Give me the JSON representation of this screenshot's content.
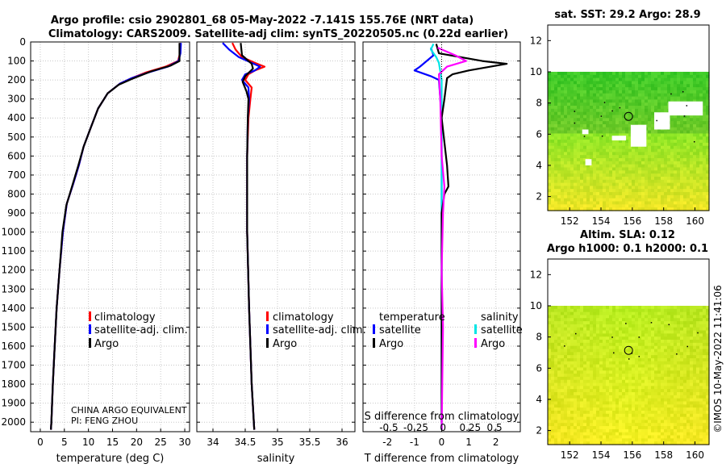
{
  "header": {
    "line1": "Argo profile: csio 2902801_68 05-May-2022 -7.141S 155.76E (NRT data)",
    "line2": "Climatology: CARS2009. Satellite-adj clim: synTS_20220505.nc (0.22d earlier)"
  },
  "colors": {
    "climatology": "#ff0000",
    "satellite": "#0000ff",
    "argo": "#000000",
    "sat_salinity": "#00e5e5",
    "argo_salinity": "#ff00ff"
  },
  "chart_data": [
    {
      "type": "line",
      "name": "temperature",
      "xlabel": "temperature (deg C)",
      "xlim": [
        -2,
        31
      ],
      "ylim": [
        2050,
        0
      ],
      "xticks": [
        "0",
        "5",
        "10",
        "15",
        "20",
        "25",
        "30"
      ],
      "xtick_values": [
        0,
        5,
        10,
        15,
        20,
        25,
        30
      ],
      "yticks": [
        "0",
        "100",
        "200",
        "300",
        "400",
        "500",
        "600",
        "700",
        "800",
        "900",
        "1000",
        "1100",
        "1200",
        "1300",
        "1400",
        "1500",
        "1600",
        "1700",
        "1800",
        "1900",
        "2000"
      ],
      "ytick_values": [
        0,
        100,
        200,
        300,
        400,
        500,
        600,
        700,
        800,
        900,
        1000,
        1100,
        1200,
        1300,
        1400,
        1500,
        1600,
        1700,
        1800,
        1900,
        2000
      ],
      "legend": [
        "climatology",
        "satellite-adj. clim.",
        "Argo"
      ],
      "annotation_1": "CHINA ARGO EQUIVALENT",
      "annotation_2": "PI: FENG ZHOU",
      "series": [
        {
          "name": "climatology",
          "color": "#ff0000",
          "points": [
            [
              29.1,
              5
            ],
            [
              29.0,
              60
            ],
            [
              28.6,
              100
            ],
            [
              26,
              130
            ],
            [
              22,
              160
            ],
            [
              19,
              190
            ],
            [
              16.5,
              220
            ],
            [
              14,
              270
            ],
            [
              12,
              350
            ],
            [
              10.5,
              450
            ],
            [
              9,
              550
            ],
            [
              8,
              650
            ],
            [
              6.8,
              750
            ],
            [
              5.5,
              850
            ],
            [
              4.7,
              1000
            ],
            [
              4.0,
              1200
            ],
            [
              3.4,
              1400
            ],
            [
              3.0,
              1600
            ],
            [
              2.6,
              1800
            ],
            [
              2.3,
              2000
            ],
            [
              2.2,
              2040
            ]
          ]
        },
        {
          "name": "satellite-adj. clim.",
          "color": "#0000ff",
          "points": [
            [
              29.2,
              5
            ],
            [
              29.1,
              60
            ],
            [
              28.7,
              100
            ],
            [
              26.5,
              130
            ],
            [
              22.5,
              160
            ],
            [
              19,
              190
            ],
            [
              16.5,
              220
            ],
            [
              14,
              270
            ],
            [
              12,
              350
            ],
            [
              10.5,
              450
            ],
            [
              9,
              550
            ],
            [
              8,
              650
            ],
            [
              6.8,
              750
            ],
            [
              5.5,
              850
            ],
            [
              4.7,
              1000
            ],
            [
              4.0,
              1200
            ],
            [
              3.4,
              1400
            ],
            [
              3.0,
              1600
            ],
            [
              2.6,
              1800
            ],
            [
              2.3,
              2000
            ],
            [
              2.2,
              2040
            ]
          ]
        },
        {
          "name": "Argo",
          "color": "#000000",
          "points": [
            [
              28.9,
              5
            ],
            [
              28.9,
              100
            ],
            [
              27,
              125
            ],
            [
              23,
              155
            ],
            [
              19,
              195
            ],
            [
              16.3,
              225
            ],
            [
              14,
              270
            ],
            [
              12,
              350
            ],
            [
              10.5,
              450
            ],
            [
              9,
              550
            ],
            [
              7.9,
              650
            ],
            [
              6.6,
              760
            ],
            [
              5.4,
              860
            ],
            [
              4.6,
              1000
            ],
            [
              4.0,
              1200
            ],
            [
              3.4,
              1400
            ],
            [
              3.0,
              1600
            ],
            [
              2.6,
              1800
            ],
            [
              2.3,
              2000
            ],
            [
              2.2,
              2040
            ]
          ]
        }
      ]
    },
    {
      "type": "line",
      "name": "salinity",
      "xlabel": "salinity",
      "xlim": [
        33.75,
        36.2
      ],
      "ylim": [
        2050,
        0
      ],
      "xticks": [
        "34",
        "34.5",
        "35",
        "35.5",
        "36"
      ],
      "xtick_values": [
        34,
        34.5,
        35,
        35.5,
        36
      ],
      "legend": [
        "climatology",
        "satellite-adj. clim.",
        "Argo"
      ],
      "series": [
        {
          "name": "climatology",
          "color": "#ff0000",
          "points": [
            [
              34.3,
              5
            ],
            [
              34.35,
              40
            ],
            [
              34.45,
              80
            ],
            [
              34.65,
              110
            ],
            [
              34.8,
              130
            ],
            [
              34.65,
              150
            ],
            [
              34.55,
              170
            ],
            [
              34.5,
              200
            ],
            [
              34.6,
              240
            ],
            [
              34.58,
              300
            ],
            [
              34.55,
              400
            ],
            [
              34.53,
              600
            ],
            [
              34.53,
              1000
            ],
            [
              34.56,
              1400
            ],
            [
              34.6,
              1800
            ],
            [
              34.64,
              2040
            ]
          ]
        },
        {
          "name": "satellite-adj. clim.",
          "color": "#0000ff",
          "points": [
            [
              34.15,
              5
            ],
            [
              34.25,
              40
            ],
            [
              34.4,
              80
            ],
            [
              34.6,
              110
            ],
            [
              34.73,
              130
            ],
            [
              34.65,
              150
            ],
            [
              34.5,
              170
            ],
            [
              34.45,
              200
            ],
            [
              34.55,
              240
            ],
            [
              34.56,
              300
            ],
            [
              34.54,
              400
            ],
            [
              34.53,
              600
            ],
            [
              34.53,
              1000
            ],
            [
              34.56,
              1400
            ],
            [
              34.6,
              1800
            ],
            [
              34.64,
              2040
            ]
          ]
        },
        {
          "name": "Argo",
          "color": "#000000",
          "points": [
            [
              34.43,
              5
            ],
            [
              34.45,
              70
            ],
            [
              34.6,
              115
            ],
            [
              34.62,
              140
            ],
            [
              34.5,
              180
            ],
            [
              34.46,
              210
            ],
            [
              34.52,
              260
            ],
            [
              34.55,
              300
            ],
            [
              34.54,
              400
            ],
            [
              34.53,
              600
            ],
            [
              34.53,
              1000
            ],
            [
              34.56,
              1400
            ],
            [
              34.6,
              1800
            ],
            [
              34.64,
              2040
            ]
          ]
        }
      ]
    },
    {
      "type": "line",
      "name": "difference",
      "xlabel": "T difference from climatology",
      "top_label": "S difference from climatology",
      "xlim": [
        -2.9,
        2.9
      ],
      "ylim": [
        2050,
        0
      ],
      "xticks": [
        "-2",
        "-1",
        "0",
        "1",
        "2"
      ],
      "xtick_values": [
        -2,
        -1,
        0,
        1,
        2
      ],
      "top_ticks": [
        "-0.5",
        "-0.25",
        "0",
        "0.25",
        "0.5"
      ],
      "top_tick_values": [
        -1.95,
        -0.95,
        0.05,
        1.05,
        1.95
      ],
      "legend_temperature_title": "temperature",
      "legend_salinity_title": "salinity",
      "legend_temperature": [
        "satellite",
        "Argo"
      ],
      "legend_salinity": [
        "satellite",
        "Argo"
      ],
      "series": [
        {
          "name": "temperature satellite",
          "color": "#0000ff",
          "points": [
            [
              -0.4,
              30
            ],
            [
              -0.3,
              70
            ],
            [
              -0.8,
              130
            ],
            [
              -1.0,
              150
            ],
            [
              -0.4,
              180
            ],
            [
              -0.1,
              200
            ],
            [
              0,
              400
            ],
            [
              0,
              1000
            ],
            [
              0,
              1500
            ],
            [
              0,
              2040
            ]
          ]
        },
        {
          "name": "salinity satellite",
          "color": "#00e5e5",
          "points": [
            [
              -0.3,
              10
            ],
            [
              -0.4,
              40
            ],
            [
              -0.2,
              80
            ],
            [
              -0.1,
              110
            ],
            [
              0,
              200
            ],
            [
              0,
              2040
            ]
          ]
        },
        {
          "name": "temperature Argo",
          "color": "#000000",
          "points": [
            [
              -0.2,
              10
            ],
            [
              -0.1,
              60
            ],
            [
              1.5,
              100
            ],
            [
              2.4,
              115
            ],
            [
              1.0,
              150
            ],
            [
              0.4,
              170
            ],
            [
              0.2,
              190
            ],
            [
              0.1,
              300
            ],
            [
              0,
              400
            ],
            [
              0.2,
              650
            ],
            [
              0.25,
              760
            ],
            [
              0.1,
              800
            ],
            [
              0,
              900
            ],
            [
              0,
              1400
            ],
            [
              0,
              2000
            ]
          ]
        },
        {
          "name": "salinity Argo",
          "color": "#ff00ff",
          "points": [
            [
              -0.15,
              30
            ],
            [
              0.5,
              70
            ],
            [
              0.9,
              100
            ],
            [
              0.2,
              130
            ],
            [
              -0.1,
              170
            ],
            [
              -0.05,
              300
            ],
            [
              0,
              600
            ],
            [
              0.1,
              760
            ],
            [
              0.05,
              900
            ],
            [
              0,
              1200
            ],
            [
              0.05,
              1500
            ],
            [
              0,
              2040
            ]
          ]
        }
      ]
    },
    {
      "type": "heatmap",
      "name": "sst_map",
      "title": "sat. SST: 29.2 Argo: 28.9",
      "xlim": [
        150.6,
        160.9
      ],
      "ylim": [
        1.1,
        13
      ],
      "data_ylim": [
        1.1,
        10
      ],
      "xticks": [
        "152",
        "154",
        "156",
        "158",
        "160"
      ],
      "xtick_values": [
        152,
        154,
        156,
        158,
        160
      ],
      "yticks": [
        "2",
        "4",
        "6",
        "8",
        "10",
        "12"
      ],
      "ytick_values": [
        2,
        4,
        6,
        8,
        10,
        12
      ],
      "marker": [
        155.76,
        7.141
      ]
    },
    {
      "type": "heatmap",
      "name": "sla_map",
      "title_line1": "Altim. SLA: 0.12",
      "title_line2": "Argo h1000: 0.1 h2000: 0.1",
      "xlim": [
        150.6,
        160.9
      ],
      "ylim": [
        1.1,
        13
      ],
      "data_ylim": [
        1.1,
        10
      ],
      "xticks": [
        "152",
        "154",
        "156",
        "158",
        "160"
      ],
      "xtick_values": [
        152,
        154,
        156,
        158,
        160
      ],
      "yticks": [
        "2",
        "4",
        "6",
        "8",
        "10",
        "12"
      ],
      "ytick_values": [
        2,
        4,
        6,
        8,
        10,
        12
      ],
      "marker": [
        155.76,
        7.141
      ]
    }
  ],
  "footer": {
    "stamp": "©IMOS 10-May-2022 11:41:06"
  }
}
